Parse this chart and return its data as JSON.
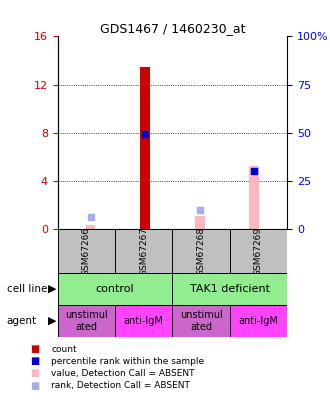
{
  "title": "GDS1467 / 1460230_at",
  "samples": [
    "GSM67266",
    "GSM67267",
    "GSM67268",
    "GSM67269"
  ],
  "x_positions": [
    1,
    2,
    3,
    4
  ],
  "red_bars": [
    0,
    13.5,
    0,
    0
  ],
  "pink_bars": [
    0.3,
    0,
    1.1,
    5.2
  ],
  "blue_dots": [
    0,
    7.9,
    0,
    4.8
  ],
  "lavender_dots": [
    1.0,
    0,
    1.6,
    0
  ],
  "ylim_left": [
    0,
    16
  ],
  "ylim_right": [
    0,
    100
  ],
  "yticks_left": [
    0,
    4,
    8,
    12,
    16
  ],
  "yticks_right": [
    0,
    25,
    50,
    75,
    100
  ],
  "ytick_labels_right": [
    "0",
    "25",
    "50",
    "75",
    "100%"
  ],
  "cell_line_color": "#90EE90",
  "agent_unstim_color": "#CC66CC",
  "agent_antilgm_color": "#FF44FF",
  "sample_box_color": "#C0C0C0",
  "red_color": "#CC0000",
  "pink_color": "#FFB6C1",
  "blue_color": "#0000CC",
  "lavender_color": "#AAAAEE",
  "legend_labels": [
    "count",
    "percentile rank within the sample",
    "value, Detection Call = ABSENT",
    "rank, Detection Call = ABSENT"
  ],
  "bar_width": 0.18
}
